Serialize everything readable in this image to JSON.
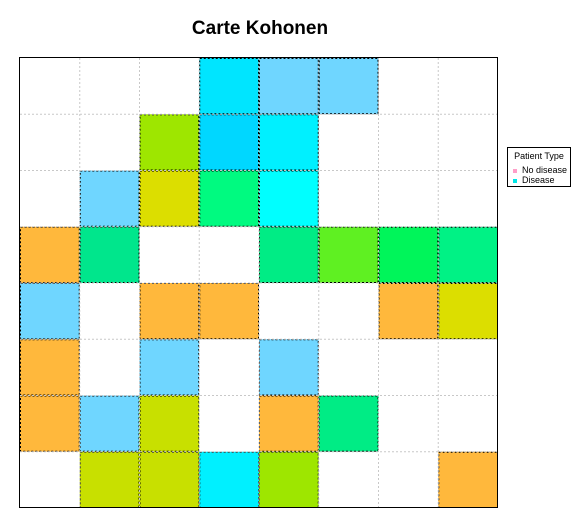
{
  "chart_data": {
    "type": "heatmap",
    "title": "Carte Kohonen",
    "grid_size": [
      8,
      8
    ],
    "grid_lines": true,
    "legend_placement": "right",
    "legend": {
      "title": "Patient Type",
      "entries": [
        {
          "label": "No disease",
          "color": "#ff9ec8"
        },
        {
          "label": "Disease",
          "color": "#00e6e6"
        }
      ]
    },
    "cells": [
      [
        "#ffffff",
        "#ffffff",
        "#ffffff",
        "#00e5ff",
        "#6fd6ff",
        "#6fd6ff",
        "#ffffff",
        "#ffffff"
      ],
      [
        "#ffffff",
        "#ffffff",
        "#9ee600",
        "#00d7ff",
        "#00f0ff",
        "#ffffff",
        "#ffffff",
        "#ffffff"
      ],
      [
        "#ffffff",
        "#6fd6ff",
        "#dcde00",
        "#00fa80",
        "#00ffff",
        "#ffffff",
        "#ffffff",
        "#ffffff"
      ],
      [
        "#ffb83c",
        "#00e68c",
        "#ffffff",
        "#ffffff",
        "#00ec85",
        "#5ff022",
        "#00f55a",
        "#00f285"
      ],
      [
        "#6fd6ff",
        "#ffffff",
        "#ffb83c",
        "#ffb83c",
        "#ffffff",
        "#ffffff",
        "#ffb83c",
        "#dcde00"
      ],
      [
        "#ffb83c",
        "#ffffff",
        "#6fd6ff",
        "#ffffff",
        "#6fd6ff",
        "#ffffff",
        "#ffffff",
        "#ffffff"
      ],
      [
        "#ffb83c",
        "#6fd6ff",
        "#c8e000",
        "#ffffff",
        "#ffb83c",
        "#00ec85",
        "#ffffff",
        "#ffffff"
      ],
      [
        "#ffffff",
        "#c8e000",
        "#c8e000",
        "#00f0ff",
        "#9ee600",
        "#ffffff",
        "#ffffff",
        "#ffb83c"
      ]
    ]
  }
}
